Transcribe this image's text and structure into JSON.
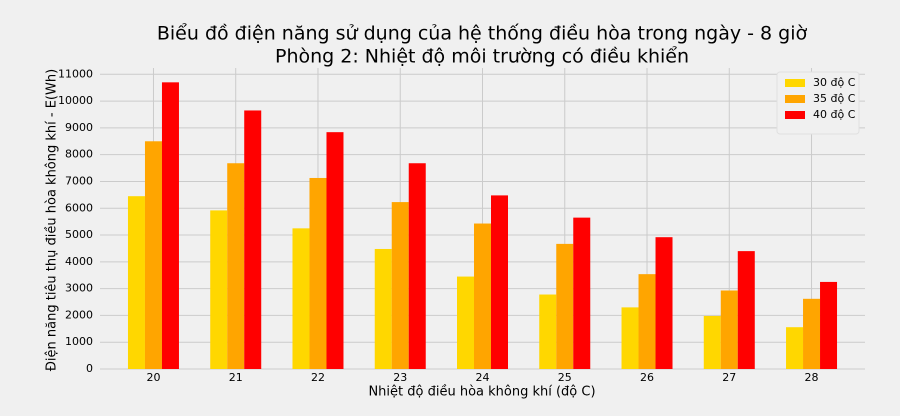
{
  "chart_data": {
    "type": "bar",
    "title": "Biểu đồ điện năng sử dụng của hệ thống điều hòa trong ngày - 8 giờ",
    "subtitle": "Phòng 2: Nhiệt độ môi trường có điều khiển",
    "x_label": "Nhiệt độ điều hòa không khí (độ C)",
    "y_label": "Điện năng tiêu thụ điều hòa không khí - E(Wh)",
    "categories": [
      "20",
      "21",
      "22",
      "23",
      "24",
      "25",
      "26",
      "27",
      "28"
    ],
    "series": [
      {
        "name": "30 độ C",
        "color": "#ffd700",
        "values": [
          6450,
          5920,
          5250,
          4480,
          3450,
          2780,
          2300,
          1980,
          1560
        ]
      },
      {
        "name": "35 độ C",
        "color": "#ffa500",
        "values": [
          8500,
          7680,
          7130,
          6230,
          5430,
          4670,
          3540,
          2930,
          2620
        ]
      },
      {
        "name": "40 độ C",
        "color": "#ff0000",
        "values": [
          10700,
          9650,
          8840,
          7680,
          6480,
          5650,
          4920,
          4400,
          3250
        ]
      }
    ],
    "ylim": [
      0,
      11235
    ],
    "yticks": [
      0,
      1000,
      2000,
      3000,
      4000,
      5000,
      6000,
      7000,
      8000,
      9000,
      10000,
      11000
    ],
    "grid": true,
    "legend": "upper right"
  }
}
